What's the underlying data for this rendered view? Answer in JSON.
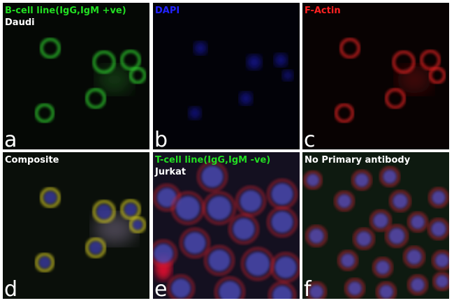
{
  "panels": [
    {
      "letter": "a",
      "labels": [
        "B-cell line(IgG,IgM +ve)",
        "Daudi"
      ]
    },
    {
      "letter": "b",
      "labels": [
        "DAPI"
      ]
    },
    {
      "letter": "c",
      "labels": [
        "F-Actin"
      ]
    },
    {
      "letter": "d",
      "labels": [
        "Composite"
      ]
    },
    {
      "letter": "e",
      "labels": [
        "T-cell line(IgG,IgM -ve)",
        "Jurkat"
      ]
    },
    {
      "letter": "f",
      "labels": [
        "No Primary antibody"
      ]
    }
  ]
}
